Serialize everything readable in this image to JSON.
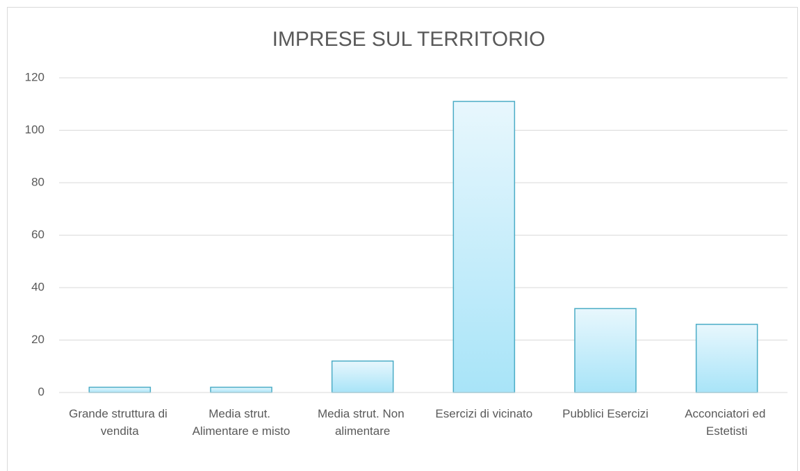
{
  "chart_data": {
    "type": "bar",
    "title": "IMPRESE SUL TERRITORIO",
    "categories": [
      "Grande struttura di vendita",
      "Media strut. Alimentare e misto",
      "Media strut. Non alimentare",
      "Esercizi di vicinato",
      "Pubblici Esercizi",
      "Acconciatori ed Estetisti"
    ],
    "values": [
      2,
      2,
      12,
      111,
      32,
      26
    ],
    "color": "#4bacc6",
    "ylim": [
      0,
      120
    ],
    "yticks": [
      0,
      20,
      40,
      60,
      80,
      100,
      120
    ],
    "grid": true
  }
}
